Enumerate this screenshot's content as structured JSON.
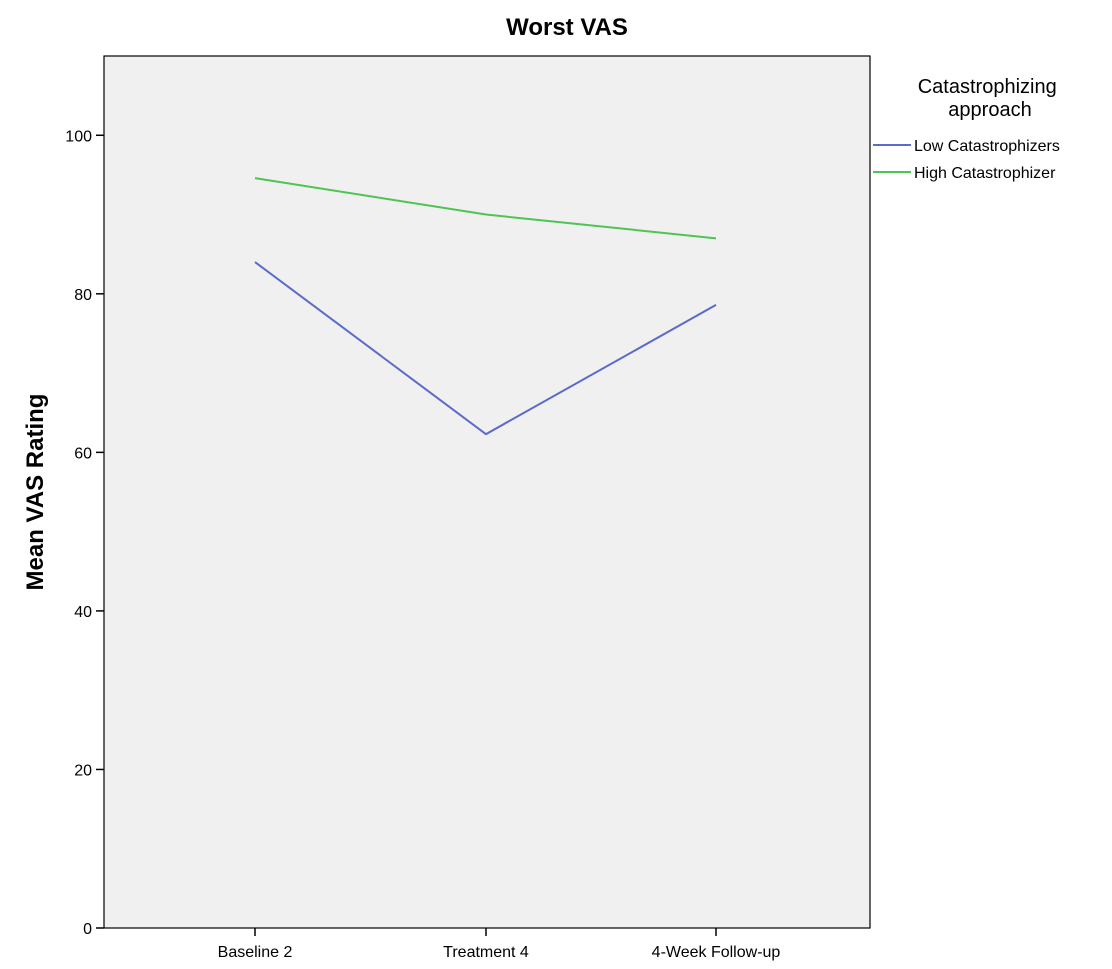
{
  "chart_data": {
    "type": "line",
    "title": "Worst VAS",
    "xlabel": "",
    "ylabel": "Mean VAS Rating",
    "categories": [
      "Baseline 2",
      "Treatment 4",
      "4-Week Follow-up"
    ],
    "ylim": [
      0,
      110
    ],
    "yticks": [
      0,
      20,
      40,
      60,
      80,
      100
    ],
    "grid": false,
    "plot_background": "#f0f0f0",
    "legend": {
      "title": "Catastrophizing approach",
      "title_lines": [
        "Catastrophizing",
        "approach"
      ],
      "placement": "top-right outside"
    },
    "series": [
      {
        "name": "Low Catastrophizers",
        "color": "#5b6bc9",
        "values": [
          84.0,
          62.3,
          78.6
        ]
      },
      {
        "name": "High Catastrophizer",
        "color": "#4dc454",
        "values": [
          94.6,
          90.0,
          87.0
        ]
      }
    ]
  }
}
